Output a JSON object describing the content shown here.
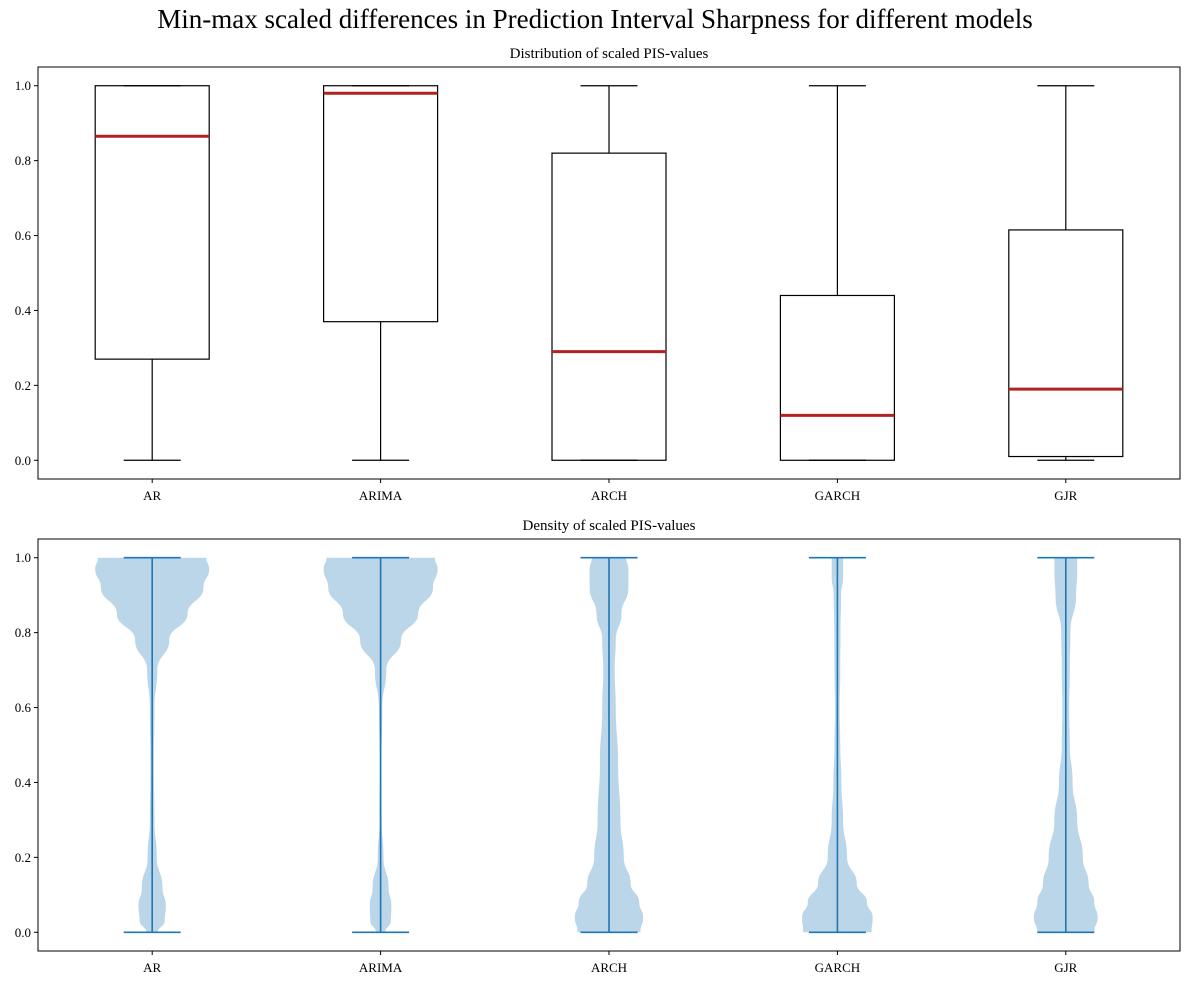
{
  "figure": {
    "title": "Min-max scaled differences in Prediction Interval Sharpness for different models"
  },
  "colors": {
    "median": "#b22222",
    "box_edge": "#000000",
    "violin_fill": "#1f77b4",
    "violin_line": "#1f77b4"
  },
  "chart_data": [
    {
      "type": "box",
      "title": "Distribution of scaled PIS-values",
      "categories": [
        "AR",
        "ARIMA",
        "ARCH",
        "GARCH",
        "GJR"
      ],
      "ylim": [
        -0.05,
        1.05
      ],
      "yticks": [
        "0.0",
        "0.2",
        "0.4",
        "0.6",
        "0.8",
        "1.0"
      ],
      "grid": false,
      "boxes": [
        {
          "whislo": 0.0,
          "q1": 0.27,
          "med": 0.865,
          "q3": 1.0,
          "whishi": 1.0
        },
        {
          "whislo": 0.0,
          "q1": 0.37,
          "med": 0.98,
          "q3": 1.0,
          "whishi": 1.0
        },
        {
          "whislo": 0.0,
          "q1": 0.0,
          "med": 0.29,
          "q3": 0.82,
          "whishi": 1.0
        },
        {
          "whislo": 0.0,
          "q1": 0.0,
          "med": 0.12,
          "q3": 0.44,
          "whishi": 1.0
        },
        {
          "whislo": 0.0,
          "q1": 0.01,
          "med": 0.19,
          "q3": 0.615,
          "whishi": 1.0
        }
      ]
    },
    {
      "type": "violin",
      "title": "Density of scaled PIS-values",
      "categories": [
        "AR",
        "ARIMA",
        "ARCH",
        "GARCH",
        "GJR"
      ],
      "ylim": [
        -0.05,
        1.05
      ],
      "yticks": [
        "0.0",
        "0.2",
        "0.4",
        "0.6",
        "0.8",
        "1.0"
      ],
      "grid": false,
      "violins": [
        {
          "min": 0.0,
          "max": 1.0,
          "density": [
            [
              0.0,
              0.1
            ],
            [
              0.03,
              0.22
            ],
            [
              0.07,
              0.24
            ],
            [
              0.12,
              0.18
            ],
            [
              0.2,
              0.08
            ],
            [
              0.3,
              0.04
            ],
            [
              0.45,
              0.03
            ],
            [
              0.6,
              0.04
            ],
            [
              0.7,
              0.09
            ],
            [
              0.78,
              0.3
            ],
            [
              0.85,
              0.62
            ],
            [
              0.92,
              0.9
            ],
            [
              0.97,
              1.0
            ],
            [
              1.0,
              0.95
            ]
          ]
        },
        {
          "min": 0.0,
          "max": 1.0,
          "density": [
            [
              0.0,
              0.08
            ],
            [
              0.03,
              0.18
            ],
            [
              0.07,
              0.19
            ],
            [
              0.12,
              0.14
            ],
            [
              0.2,
              0.05
            ],
            [
              0.3,
              0.02
            ],
            [
              0.45,
              0.015
            ],
            [
              0.6,
              0.03
            ],
            [
              0.7,
              0.1
            ],
            [
              0.78,
              0.36
            ],
            [
              0.85,
              0.66
            ],
            [
              0.92,
              0.92
            ],
            [
              0.97,
              1.0
            ],
            [
              1.0,
              0.95
            ]
          ]
        },
        {
          "min": 0.0,
          "max": 1.0,
          "density": [
            [
              0.0,
              0.55
            ],
            [
              0.04,
              0.6
            ],
            [
              0.08,
              0.53
            ],
            [
              0.13,
              0.38
            ],
            [
              0.2,
              0.26
            ],
            [
              0.3,
              0.2
            ],
            [
              0.45,
              0.16
            ],
            [
              0.6,
              0.12
            ],
            [
              0.7,
              0.1
            ],
            [
              0.78,
              0.12
            ],
            [
              0.85,
              0.22
            ],
            [
              0.92,
              0.34
            ],
            [
              0.97,
              0.34
            ],
            [
              1.0,
              0.3
            ]
          ]
        },
        {
          "min": 0.0,
          "max": 1.0,
          "density": [
            [
              0.0,
              0.6
            ],
            [
              0.04,
              0.62
            ],
            [
              0.08,
              0.52
            ],
            [
              0.13,
              0.34
            ],
            [
              0.2,
              0.17
            ],
            [
              0.3,
              0.1
            ],
            [
              0.4,
              0.07
            ],
            [
              0.5,
              0.05
            ],
            [
              0.6,
              0.04
            ],
            [
              0.7,
              0.05
            ],
            [
              0.8,
              0.055
            ],
            [
              0.9,
              0.065
            ],
            [
              0.95,
              0.1
            ],
            [
              1.0,
              0.1
            ]
          ]
        },
        {
          "min": 0.0,
          "max": 1.0,
          "density": [
            [
              0.0,
              0.5
            ],
            [
              0.04,
              0.56
            ],
            [
              0.08,
              0.5
            ],
            [
              0.13,
              0.4
            ],
            [
              0.2,
              0.3
            ],
            [
              0.3,
              0.2
            ],
            [
              0.4,
              0.12
            ],
            [
              0.5,
              0.07
            ],
            [
              0.6,
              0.06
            ],
            [
              0.7,
              0.07
            ],
            [
              0.8,
              0.08
            ],
            [
              0.9,
              0.18
            ],
            [
              0.96,
              0.2
            ],
            [
              1.0,
              0.2
            ]
          ]
        }
      ]
    }
  ]
}
